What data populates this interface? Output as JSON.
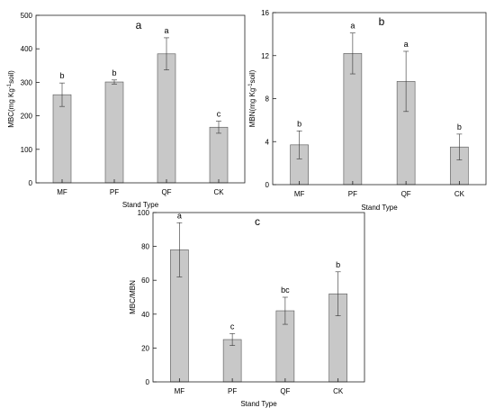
{
  "colors": {
    "bar_fill": "#c8c8c8",
    "axis": "#222222"
  },
  "chart_data": [
    {
      "type": "bar",
      "panel": "a",
      "categories": [
        "MF",
        "PF",
        "QF",
        "CK"
      ],
      "values": [
        263,
        301,
        385,
        166
      ],
      "errors": [
        35,
        6,
        48,
        18
      ],
      "significance": [
        "b",
        "b",
        "a",
        "c"
      ],
      "xlabel": "Stand Type",
      "ylabel": "MBC(mg Kg-1soil)",
      "ylim": [
        0,
        500
      ],
      "yticks": [
        0,
        100,
        200,
        300,
        400,
        500
      ]
    },
    {
      "type": "bar",
      "panel": "b",
      "categories": [
        "MF",
        "PF",
        "QF",
        "CK"
      ],
      "values": [
        3.7,
        12.2,
        9.6,
        3.5
      ],
      "errors": [
        1.3,
        1.9,
        2.8,
        1.2
      ],
      "significance": [
        "b",
        "a",
        "a",
        "b"
      ],
      "xlabel": "Stand Type",
      "ylabel": "MBN(mg Kg-1soil)",
      "ylim": [
        0,
        16
      ],
      "yticks": [
        0,
        4,
        8,
        12,
        16
      ]
    },
    {
      "type": "bar",
      "panel": "c",
      "categories": [
        "MF",
        "PF",
        "QF",
        "CK"
      ],
      "values": [
        78,
        25,
        42,
        52
      ],
      "errors": [
        16,
        3.5,
        8,
        13
      ],
      "significance": [
        "a",
        "c",
        "bc",
        "b"
      ],
      "xlabel": "Stand Type",
      "ylabel": "MBC/MBN",
      "ylim": [
        0,
        100
      ],
      "yticks": [
        0,
        20,
        40,
        60,
        80,
        100
      ]
    }
  ]
}
